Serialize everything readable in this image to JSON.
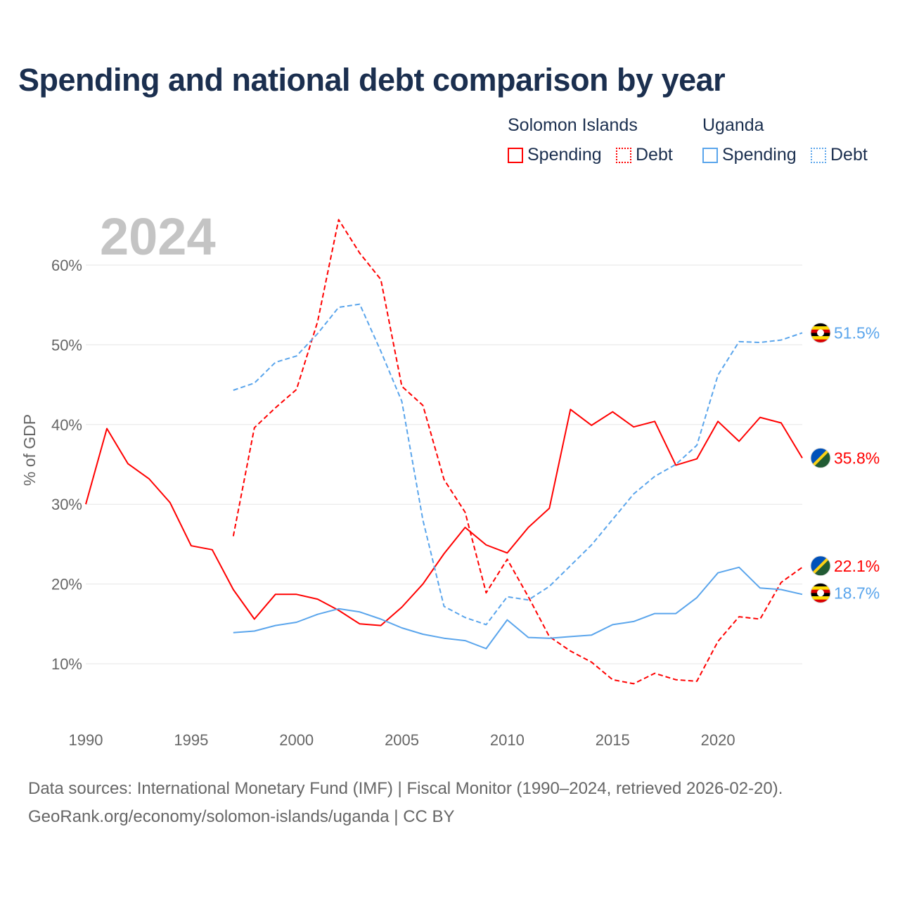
{
  "title": "Spending and national debt comparison by year",
  "legend": {
    "groups": [
      "Solomon Islands",
      "Uganda"
    ],
    "items": [
      "Spending",
      "Debt",
      "Spending",
      "Debt"
    ]
  },
  "year_label": "2024",
  "footer": {
    "line1": "Data sources: International Monetary Fund (IMF) | Fiscal Monitor (1990–2024, retrieved 2026-02-20).",
    "line2": "GeoRank.org/economy/solomon-islands/uganda | CC BY"
  },
  "chart_data": {
    "type": "line",
    "title": "Spending and national debt comparison by year",
    "xlabel": "",
    "ylabel": "% of GDP",
    "xlim": [
      1990,
      2024
    ],
    "ylim": [
      3,
      68
    ],
    "x_ticks": [
      1990,
      1995,
      2000,
      2005,
      2010,
      2015,
      2020
    ],
    "x_tick_labels": [
      "1990",
      "1995",
      "2000",
      "2005",
      "2010",
      "2015",
      "2020"
    ],
    "y_ticks": [
      10,
      20,
      30,
      40,
      50,
      60
    ],
    "y_tick_labels": [
      "10%",
      "20%",
      "30%",
      "40%",
      "50%",
      "60%"
    ],
    "grid": true,
    "legend_position": "top-right",
    "series": [
      {
        "name": "Solomon Islands Spending",
        "country": "solomon",
        "color": "#ff0000",
        "dash": false,
        "start": 1990,
        "end_label": "35.8%",
        "values": [
          30.0,
          39.5,
          35.1,
          33.2,
          30.2,
          24.8,
          24.3,
          19.3,
          15.6,
          18.7,
          18.7,
          18.1,
          16.7,
          15.0,
          14.8,
          17.1,
          20.0,
          23.8,
          27.1,
          24.9,
          23.9,
          27.1,
          29.5,
          41.9,
          39.9,
          41.6,
          39.7,
          40.4,
          34.9,
          35.7,
          40.4,
          37.9,
          40.9,
          40.2,
          35.8
        ]
      },
      {
        "name": "Solomon Islands Debt",
        "country": "solomon",
        "color": "#ff0000",
        "dash": true,
        "start": 1997,
        "end_label": "22.1%",
        "values": [
          26.0,
          39.6,
          42.1,
          44.4,
          52.9,
          65.7,
          61.5,
          58.2,
          44.8,
          42.4,
          33.1,
          29.0,
          18.9,
          23.1,
          18.4,
          13.4,
          11.6,
          10.2,
          8.0,
          7.5,
          8.8,
          8.0,
          7.8,
          12.8,
          15.9,
          15.6,
          20.2,
          22.1
        ]
      },
      {
        "name": "Uganda Spending",
        "country": "uganda",
        "color": "#5aa5ec",
        "dash": false,
        "start": 1997,
        "end_label": "18.7%",
        "values": [
          13.9,
          14.1,
          14.8,
          15.2,
          16.2,
          16.9,
          16.5,
          15.6,
          14.5,
          13.7,
          13.2,
          12.9,
          11.9,
          15.5,
          13.3,
          13.2,
          13.4,
          13.6,
          14.9,
          15.3,
          16.3,
          16.3,
          18.3,
          21.4,
          22.1,
          19.5,
          19.3,
          18.7
        ]
      },
      {
        "name": "Uganda Debt",
        "country": "uganda",
        "color": "#5aa5ec",
        "dash": true,
        "start": 1997,
        "end_label": "51.5%",
        "values": [
          44.3,
          45.2,
          47.8,
          48.6,
          51.4,
          54.7,
          55.1,
          49.2,
          42.9,
          28.0,
          17.2,
          15.8,
          14.9,
          18.4,
          18.0,
          19.7,
          22.3,
          24.9,
          28.1,
          31.3,
          33.5,
          35.0,
          37.4,
          46.2,
          50.4,
          50.3,
          50.6,
          51.5
        ]
      }
    ]
  }
}
